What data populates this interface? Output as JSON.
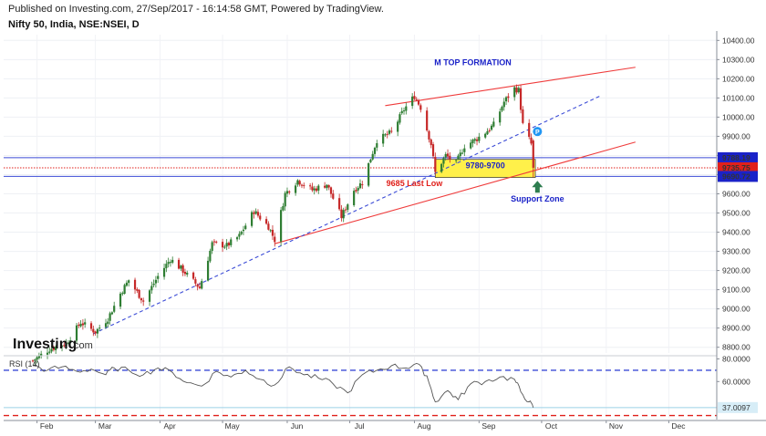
{
  "header": {
    "published": "Published on Investing.com, 27/Sep/2017 - 16:14:58 GMT, Powered by TradingView.",
    "symbol": "Nifty 50, India, NSE:NSEI, D"
  },
  "logo": {
    "brand_main": "Investing",
    "brand_suffix": ".com"
  },
  "colors": {
    "up": "#2e7d32",
    "down": "#c62828",
    "trend_red": "#ef3b3b",
    "trend_blue": "#3b4bd6",
    "annotation_blue": "#1a22c8",
    "annotation_red": "#e0201b",
    "support_box": "#fff04a",
    "arrow_green": "#2e7d4f",
    "rsi_line": "#555555"
  },
  "chart_data": [
    {
      "type": "candlestick",
      "title": "Nifty 50, India, NSE:NSEI, D",
      "x_months": [
        "Feb",
        "Mar",
        "Apr",
        "May",
        "Jun",
        "Jul",
        "Aug",
        "Sep",
        "Oct",
        "Nov",
        "Dec"
      ],
      "y_ticks": [
        8800,
        8900,
        9000,
        9100,
        9200,
        9300,
        9400,
        9500,
        9600,
        9700,
        9800,
        9900,
        10000,
        10100,
        10200,
        10300,
        10400
      ],
      "y_tick_labels": [
        "8800.00",
        "8900.00",
        "9000.00",
        "9100.00",
        "9200.00",
        "9300.00",
        "9400.00",
        "9500.00",
        "9600.00",
        "9700.00",
        "9800.00",
        "9900.00",
        "10000.00",
        "10100.00",
        "10200.00",
        "10300.00",
        "10400.00"
      ],
      "ylim": [
        8770,
        10430
      ],
      "close_path": [
        [
          "2017-01-30",
          8730
        ],
        [
          "2017-02-07",
          8790
        ],
        [
          "2017-02-15",
          8820
        ],
        [
          "2017-02-22",
          8930
        ],
        [
          "2017-03-01",
          8880
        ],
        [
          "2017-03-07",
          8950
        ],
        [
          "2017-03-13",
          9080
        ],
        [
          "2017-03-17",
          9150
        ],
        [
          "2017-03-24",
          9040
        ],
        [
          "2017-03-31",
          9170
        ],
        [
          "2017-04-06",
          9260
        ],
        [
          "2017-04-12",
          9200
        ],
        [
          "2017-04-20",
          9110
        ],
        [
          "2017-04-26",
          9340
        ],
        [
          "2017-05-03",
          9330
        ],
        [
          "2017-05-09",
          9380
        ],
        [
          "2017-05-16",
          9510
        ],
        [
          "2017-05-23",
          9430
        ],
        [
          "2017-05-26",
          9360
        ],
        [
          "2017-05-31",
          9600
        ],
        [
          "2017-06-06",
          9670
        ],
        [
          "2017-06-13",
          9620
        ],
        [
          "2017-06-20",
          9650
        ],
        [
          "2017-06-27",
          9480
        ],
        [
          "2017-07-03",
          9620
        ],
        [
          "2017-07-07",
          9660
        ],
        [
          "2017-07-14",
          9880
        ],
        [
          "2017-07-21",
          9920
        ],
        [
          "2017-07-27",
          10040
        ],
        [
          "2017-08-01",
          10110
        ],
        [
          "2017-08-04",
          10050
        ],
        [
          "2017-08-09",
          9860
        ],
        [
          "2017-08-11",
          9710
        ],
        [
          "2017-08-16",
          9800
        ],
        [
          "2017-08-21",
          9760
        ],
        [
          "2017-08-25",
          9850
        ],
        [
          "2017-08-30",
          9880
        ],
        [
          "2017-09-04",
          9920
        ],
        [
          "2017-09-08",
          9960
        ],
        [
          "2017-09-13",
          10080
        ],
        [
          "2017-09-18",
          10150
        ],
        [
          "2017-09-20",
          10140
        ],
        [
          "2017-09-22",
          9960
        ],
        [
          "2017-09-26",
          9860
        ],
        [
          "2017-09-27",
          9735
        ]
      ],
      "price_labels": [
        {
          "text": "9788.19",
          "value": 9788.19,
          "color": "#1a22c8"
        },
        {
          "text": "9735.75",
          "value": 9735.75,
          "color": "#e0201b"
        },
        {
          "text": "9690.72",
          "value": 9690.72,
          "color": "#1a22c8"
        }
      ],
      "horizontal_lines": [
        {
          "value": 9788.19,
          "color": "#3b4bd6",
          "style": "solid"
        },
        {
          "value": 9735.75,
          "color": "#e0201b",
          "style": "dotted"
        },
        {
          "value": 9690.72,
          "color": "#3b4bd6",
          "style": "solid"
        }
      ],
      "trendlines": [
        {
          "name": "upper-channel",
          "color": "#ef3b3b",
          "style": "solid",
          "from": [
            "2017-07-18",
            10060
          ],
          "to": [
            "2017-11-15",
            10260
          ]
        },
        {
          "name": "lower-channel",
          "color": "#ef3b3b",
          "style": "solid",
          "from": [
            "2017-05-26",
            9340
          ],
          "to": [
            "2017-11-15",
            9870
          ]
        },
        {
          "name": "blue-support",
          "color": "#3b4bd6",
          "style": "dashed",
          "from": [
            "2017-02-28",
            8870
          ],
          "to": [
            "2017-10-29",
            10110
          ]
        }
      ],
      "annotations": [
        {
          "text": "M TOP FORMATION",
          "color": "#1a22c8",
          "at": [
            "2017-08-29",
            10270
          ]
        },
        {
          "text": "9780-9700",
          "color": "#1a22c8",
          "at": [
            "2017-09-04",
            9733
          ]
        },
        {
          "text": "9685 Last Low",
          "color": "#e0201b",
          "at": [
            "2017-08-01",
            9640
          ]
        },
        {
          "text": "Support Zone",
          "color": "#1a22c8",
          "at": [
            "2017-09-29",
            9560
          ]
        }
      ],
      "support_box": {
        "x_from": "2017-08-11",
        "x_to": "2017-09-28",
        "y_low": 9685,
        "y_high": 9780
      }
    },
    {
      "type": "line",
      "title": "RSI (14)",
      "series_label": "RSI (14)",
      "y_ticks": [
        60,
        80
      ],
      "y_tick_labels": [
        "60.0000",
        "80.0000"
      ],
      "ylim": [
        28,
        82
      ],
      "levels": [
        70,
        30
      ],
      "current_value_label": "37.0097",
      "current_value": 37.0097,
      "values": [
        [
          "2017-01-30",
          74
        ],
        [
          "2017-02-06",
          70
        ],
        [
          "2017-02-13",
          73
        ],
        [
          "2017-02-20",
          69
        ],
        [
          "2017-02-27",
          71
        ],
        [
          "2017-03-06",
          66
        ],
        [
          "2017-03-10",
          72
        ],
        [
          "2017-03-17",
          70
        ],
        [
          "2017-03-24",
          66
        ],
        [
          "2017-03-31",
          72
        ],
        [
          "2017-04-07",
          68
        ],
        [
          "2017-04-14",
          59
        ],
        [
          "2017-04-21",
          56
        ],
        [
          "2017-04-28",
          69
        ],
        [
          "2017-05-05",
          64
        ],
        [
          "2017-05-12",
          70
        ],
        [
          "2017-05-19",
          62
        ],
        [
          "2017-05-26",
          57
        ],
        [
          "2017-06-02",
          73
        ],
        [
          "2017-06-09",
          66
        ],
        [
          "2017-06-16",
          63
        ],
        [
          "2017-06-23",
          58
        ],
        [
          "2017-06-30",
          50
        ],
        [
          "2017-07-07",
          66
        ],
        [
          "2017-07-14",
          70
        ],
        [
          "2017-07-21",
          74
        ],
        [
          "2017-07-28",
          72
        ],
        [
          "2017-08-02",
          76
        ],
        [
          "2017-08-07",
          65
        ],
        [
          "2017-08-11",
          42
        ],
        [
          "2017-08-17",
          52
        ],
        [
          "2017-08-22",
          44
        ],
        [
          "2017-08-28",
          58
        ],
        [
          "2017-09-04",
          60
        ],
        [
          "2017-09-11",
          64
        ],
        [
          "2017-09-18",
          62
        ],
        [
          "2017-09-21",
          51
        ],
        [
          "2017-09-25",
          42
        ],
        [
          "2017-09-27",
          37
        ]
      ]
    }
  ]
}
